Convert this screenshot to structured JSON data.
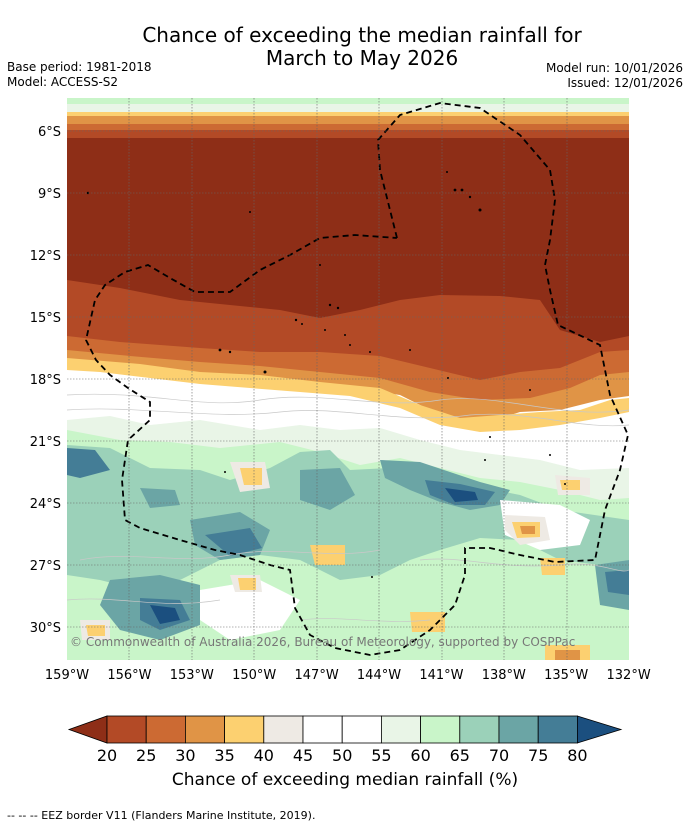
{
  "title_line1": "Chance of exceeding the median rainfall for",
  "title_line2": "March to May 2026",
  "base_period": "Base period: 1981-2018",
  "model": "Model: ACCESS-S2",
  "model_run": "Model run: 10/01/2026",
  "issued": "Issued: 12/01/2026",
  "copyright": "© Commonwealth of Australia 2026, Bureau of Meteorology, supported by COSPPac",
  "lat_labels": [
    "6°S",
    "9°S",
    "12°S",
    "15°S",
    "18°S",
    "21°S",
    "24°S",
    "27°S",
    "30°S"
  ],
  "lon_labels": [
    "159°W",
    "156°W",
    "153°W",
    "150°W",
    "147°W",
    "144°W",
    "141°W",
    "138°W",
    "135°W",
    "132°W"
  ],
  "colorbar": {
    "ticks": [
      "20",
      "25",
      "30",
      "35",
      "40",
      "45",
      "50",
      "55",
      "60",
      "65",
      "70",
      "75",
      "80"
    ],
    "colors": [
      "#8e2e17",
      "#b34a26",
      "#cc6a33",
      "#e09446",
      "#fcd070",
      "#eeeae4",
      "#ffffff",
      "#ffffff",
      "#e9f5e7",
      "#c9f5c9",
      "#9bd1b9",
      "#6ba5a5",
      "#447d96",
      "#1b4f7f"
    ],
    "label": "Chance of exceeding median rainfall (%)"
  },
  "footnote": "--  --  -- EEZ border V11 (Flanders Marine Institute, 2019)."
}
